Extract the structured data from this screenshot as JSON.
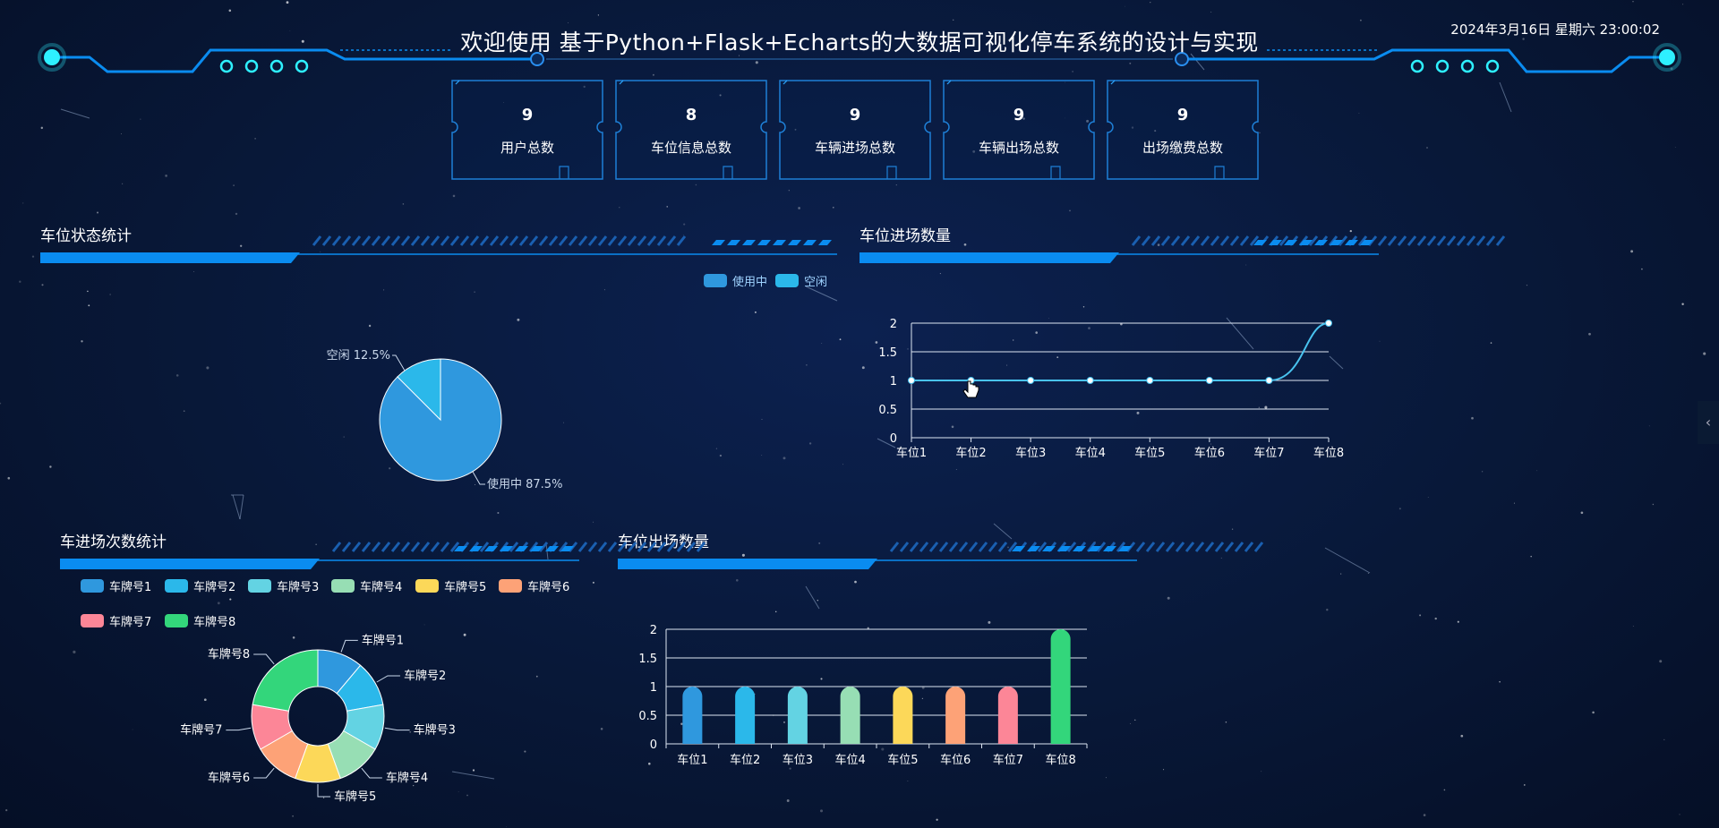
{
  "header": {
    "title": "欢迎使用 基于Python+Flask+Echarts的大数据可视化停车系统的设计与实现",
    "datetime": "2024年3月16日 星期六 23:00:02"
  },
  "stats": [
    {
      "value": "9",
      "label": "用户总数"
    },
    {
      "value": "8",
      "label": "车位信息总数"
    },
    {
      "value": "9",
      "label": "车辆进场总数"
    },
    {
      "value": "9",
      "label": "车辆出场总数"
    },
    {
      "value": "9",
      "label": "出场缴费总数"
    }
  ],
  "sections": {
    "status": "车位状态统计",
    "entry_count": "车位进场数量",
    "vehicle_entry": "车进场次数统计",
    "exit_count": "车位出场数量"
  },
  "colors": {
    "accent": "#0a8cf0",
    "series": [
      "#2f98de",
      "#2bb8ea",
      "#63d3e3",
      "#97deb4",
      "#fcd859",
      "#fda277",
      "#fc8697",
      "#33d67b"
    ]
  },
  "chart_data": [
    {
      "type": "pie",
      "legend_position": "top-right",
      "categories": [
        "使用中",
        "空闲"
      ],
      "values": [
        87.5,
        12.5
      ],
      "value_labels": [
        "使用中 87.5%",
        "空闲 12.5%"
      ],
      "colors": [
        "#2f98de",
        "#2bb8ea"
      ]
    },
    {
      "type": "line",
      "categories": [
        "车位1",
        "车位2",
        "车位3",
        "车位4",
        "车位5",
        "车位6",
        "车位7",
        "车位8"
      ],
      "values": [
        1,
        1,
        1,
        1,
        1,
        1,
        1,
        2
      ],
      "ylim": [
        0,
        2
      ],
      "yticks": [
        "0",
        "0.5",
        "1",
        "1.5",
        "2"
      ],
      "grid": true
    },
    {
      "type": "pie",
      "donut": true,
      "legend_position": "top",
      "categories": [
        "车牌号1",
        "车牌号2",
        "车牌号3",
        "车牌号4",
        "车牌号5",
        "车牌号6",
        "车牌号7",
        "车牌号8"
      ],
      "values": [
        1,
        1,
        1,
        1,
        1,
        1,
        1,
        2
      ]
    },
    {
      "type": "bar",
      "categories": [
        "车位1",
        "车位2",
        "车位3",
        "车位4",
        "车位5",
        "车位6",
        "车位7",
        "车位8"
      ],
      "values": [
        1,
        1,
        1,
        1,
        1,
        1,
        1,
        2
      ],
      "ylim": [
        0,
        2
      ],
      "yticks": [
        "0",
        "0.5",
        "1",
        "1.5",
        "2"
      ],
      "grid": true
    }
  ],
  "ui": {
    "collapse_arrow": "‹"
  }
}
